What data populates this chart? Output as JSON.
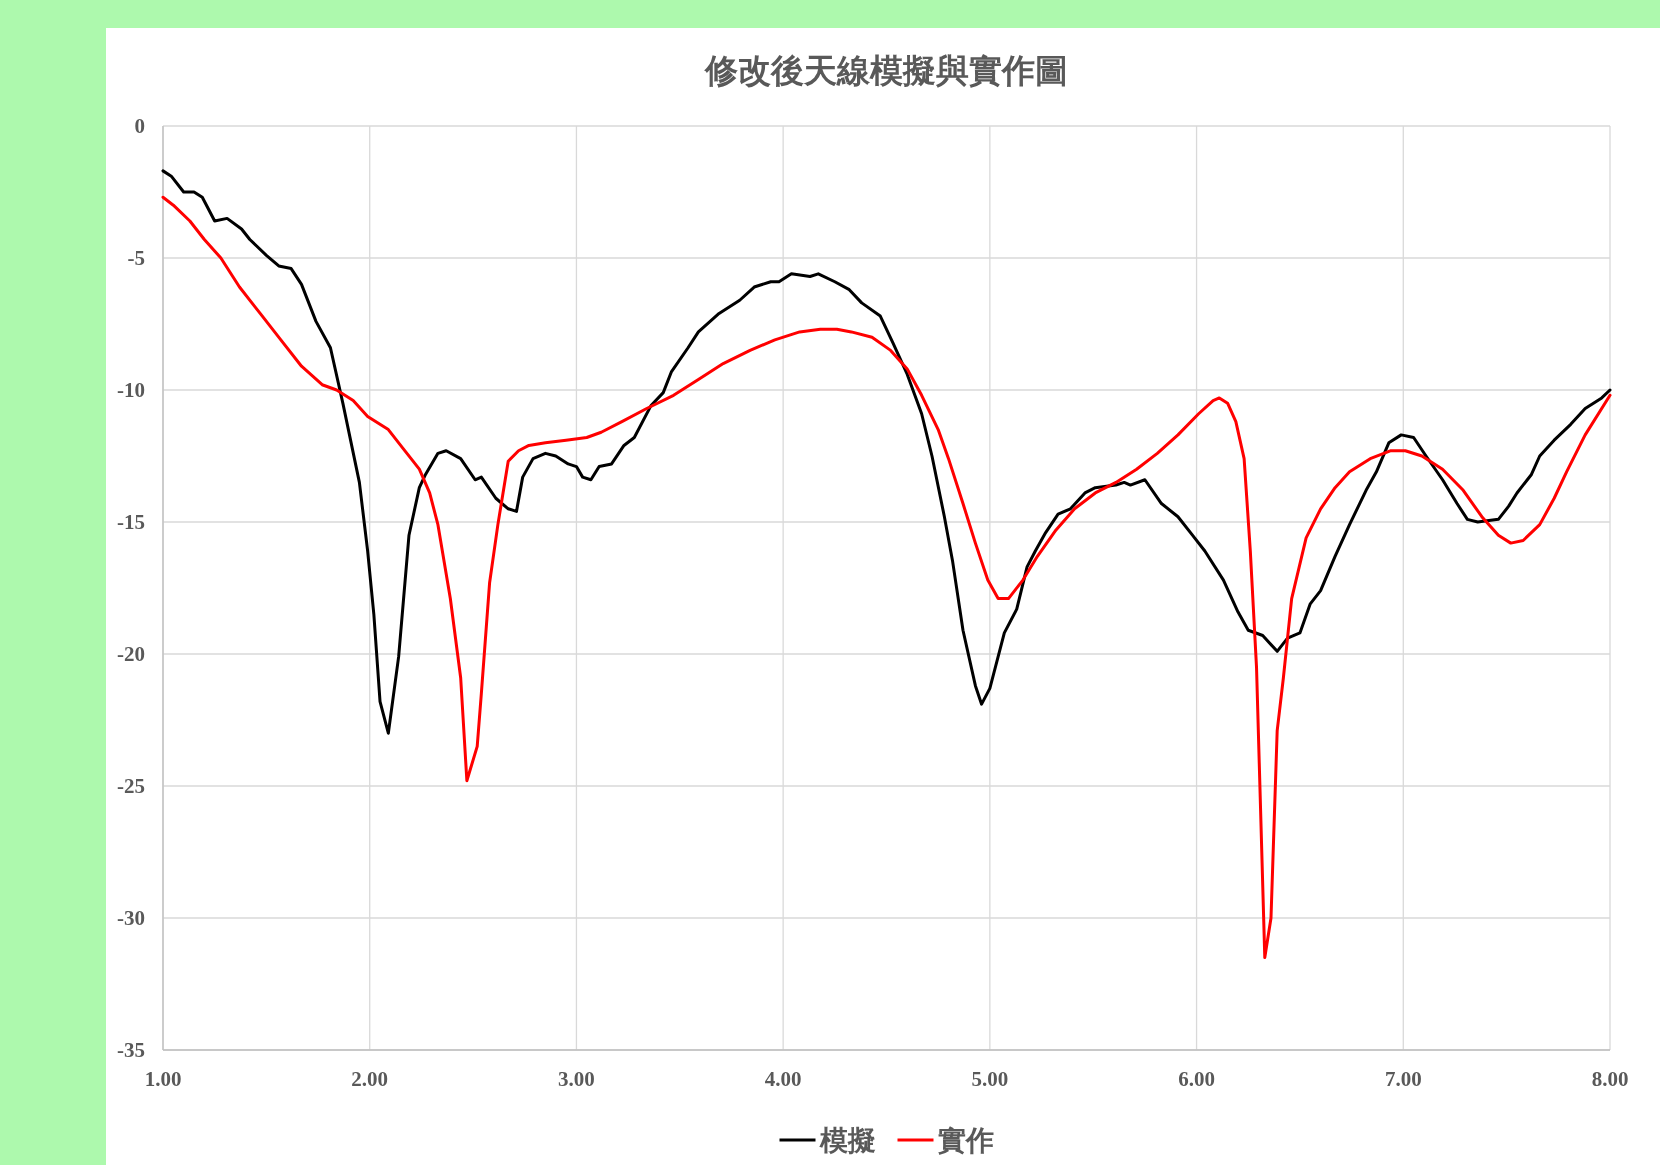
{
  "chart_data": {
    "type": "line",
    "title": "修改後天線模擬與實作圖",
    "xlim": [
      1,
      8
    ],
    "xticks": [
      {
        "value": 1,
        "label": "1.00"
      },
      {
        "value": 2,
        "label": "2.00"
      },
      {
        "value": 3,
        "label": "3.00"
      },
      {
        "value": 4,
        "label": "4.00"
      },
      {
        "value": 5,
        "label": "5.00"
      },
      {
        "value": 6,
        "label": "6.00"
      },
      {
        "value": 7,
        "label": "7.00"
      },
      {
        "value": 8,
        "label": "8.00"
      }
    ],
    "ylim": [
      -35,
      0
    ],
    "yticks": [
      0,
      -5,
      -10,
      -15,
      -20,
      -25,
      -30,
      -35
    ],
    "grid": true,
    "legend": "bottom",
    "marker": "none",
    "line_style": "solid",
    "series": [
      {
        "name": "模擬",
        "color": "#000000",
        "x": [
          1.0,
          1.04,
          1.1,
          1.15,
          1.19,
          1.25,
          1.31,
          1.38,
          1.42,
          1.5,
          1.56,
          1.62,
          1.67,
          1.74,
          1.81,
          1.87,
          1.95,
          1.99,
          2.02,
          2.05,
          2.09,
          2.14,
          2.19,
          2.24,
          2.27,
          2.33,
          2.37,
          2.44,
          2.51,
          2.54,
          2.61,
          2.67,
          2.71,
          2.74,
          2.79,
          2.85,
          2.9,
          2.96,
          3.0,
          3.03,
          3.07,
          3.11,
          3.17,
          3.23,
          3.28,
          3.36,
          3.42,
          3.46,
          3.54,
          3.59,
          3.69,
          3.79,
          3.86,
          3.94,
          3.98,
          4.04,
          4.13,
          4.17,
          4.25,
          4.32,
          4.38,
          4.47,
          4.53,
          4.6,
          4.67,
          4.72,
          4.78,
          4.82,
          4.87,
          4.93,
          4.96,
          5.0,
          5.07,
          5.13,
          5.18,
          5.22,
          5.27,
          5.33,
          5.39,
          5.46,
          5.51,
          5.61,
          5.65,
          5.68,
          5.75,
          5.83,
          5.91,
          5.98,
          6.04,
          6.13,
          6.2,
          6.25,
          6.32,
          6.39,
          6.44,
          6.5,
          6.55,
          6.6,
          6.67,
          6.74,
          6.82,
          6.87,
          6.93,
          6.99,
          7.05,
          7.11,
          7.19,
          7.26,
          7.31,
          7.36,
          7.46,
          7.51,
          7.55,
          7.62,
          7.66,
          7.73,
          7.81,
          7.88,
          7.96,
          8.0
        ],
        "values": [
          -1.7,
          -1.9,
          -2.5,
          -2.5,
          -2.7,
          -3.6,
          -3.5,
          -3.9,
          -4.3,
          -4.9,
          -5.3,
          -5.4,
          -6.0,
          -7.4,
          -8.4,
          -10.5,
          -13.5,
          -16.1,
          -18.5,
          -21.8,
          -23.0,
          -20.1,
          -15.5,
          -13.7,
          -13.2,
          -12.4,
          -12.3,
          -12.6,
          -13.4,
          -13.3,
          -14.1,
          -14.5,
          -14.6,
          -13.3,
          -12.6,
          -12.4,
          -12.5,
          -12.8,
          -12.9,
          -13.3,
          -13.4,
          -12.9,
          -12.8,
          -12.1,
          -11.8,
          -10.6,
          -10.1,
          -9.3,
          -8.4,
          -7.8,
          -7.1,
          -6.6,
          -6.1,
          -5.9,
          -5.9,
          -5.6,
          -5.7,
          -5.6,
          -5.9,
          -6.2,
          -6.7,
          -7.2,
          -8.2,
          -9.4,
          -10.9,
          -12.5,
          -14.8,
          -16.5,
          -19.1,
          -21.2,
          -21.9,
          -21.3,
          -19.2,
          -18.3,
          -16.7,
          -16.1,
          -15.4,
          -14.7,
          -14.5,
          -13.9,
          -13.7,
          -13.6,
          -13.5,
          -13.6,
          -13.4,
          -14.3,
          -14.8,
          -15.5,
          -16.1,
          -17.2,
          -18.4,
          -19.1,
          -19.3,
          -19.9,
          -19.4,
          -19.2,
          -18.1,
          -17.6,
          -16.3,
          -15.1,
          -13.8,
          -13.1,
          -12.0,
          -11.7,
          -11.8,
          -12.5,
          -13.4,
          -14.3,
          -14.9,
          -15.0,
          -14.9,
          -14.4,
          -13.9,
          -13.2,
          -12.5,
          -11.9,
          -11.3,
          -10.7,
          -10.3,
          -10.0
        ]
      },
      {
        "name": "實作",
        "color": "#ff0000",
        "x": [
          1.0,
          1.05,
          1.13,
          1.2,
          1.28,
          1.37,
          1.47,
          1.57,
          1.67,
          1.77,
          1.84,
          1.92,
          1.99,
          2.09,
          2.16,
          2.24,
          2.29,
          2.33,
          2.39,
          2.44,
          2.47,
          2.52,
          2.54,
          2.58,
          2.62,
          2.67,
          2.72,
          2.77,
          2.85,
          2.95,
          3.05,
          3.12,
          3.22,
          3.34,
          3.47,
          3.59,
          3.71,
          3.84,
          3.96,
          4.08,
          4.18,
          4.26,
          4.33,
          4.43,
          4.52,
          4.6,
          4.67,
          4.75,
          4.8,
          4.87,
          4.93,
          4.99,
          5.04,
          5.09,
          5.16,
          5.23,
          5.32,
          5.41,
          5.51,
          5.61,
          5.71,
          5.81,
          5.91,
          6.01,
          6.08,
          6.11,
          6.15,
          6.19,
          6.23,
          6.26,
          6.29,
          6.33,
          6.36,
          6.39,
          6.42,
          6.46,
          6.53,
          6.6,
          6.67,
          6.74,
          6.84,
          6.94,
          7.01,
          7.09,
          7.19,
          7.29,
          7.38,
          7.46,
          7.52,
          7.58,
          7.66,
          7.73,
          7.79,
          7.88,
          8.0
        ],
        "values": [
          -2.7,
          -3.0,
          -3.6,
          -4.3,
          -5.0,
          -6.1,
          -7.1,
          -8.1,
          -9.1,
          -9.8,
          -10.0,
          -10.4,
          -11.0,
          -11.5,
          -12.2,
          -13.0,
          -13.9,
          -15.1,
          -17.9,
          -20.9,
          -24.8,
          -23.5,
          -21.5,
          -17.3,
          -15.1,
          -12.7,
          -12.3,
          -12.1,
          -12.0,
          -11.9,
          -11.8,
          -11.6,
          -11.2,
          -10.7,
          -10.2,
          -9.6,
          -9.0,
          -8.5,
          -8.1,
          -7.8,
          -7.7,
          -7.7,
          -7.8,
          -8.0,
          -8.5,
          -9.2,
          -10.2,
          -11.5,
          -12.6,
          -14.3,
          -15.8,
          -17.2,
          -17.9,
          -17.9,
          -17.2,
          -16.3,
          -15.3,
          -14.5,
          -13.9,
          -13.5,
          -13.0,
          -12.4,
          -11.7,
          -10.9,
          -10.4,
          -10.3,
          -10.5,
          -11.2,
          -12.6,
          -16.1,
          -20.5,
          -31.5,
          -30.0,
          -22.9,
          -20.9,
          -17.9,
          -15.6,
          -14.5,
          -13.7,
          -13.1,
          -12.6,
          -12.3,
          -12.3,
          -12.5,
          -13.0,
          -13.8,
          -14.8,
          -15.5,
          -15.8,
          -15.7,
          -15.1,
          -14.1,
          -13.1,
          -11.7,
          -10.2
        ]
      }
    ]
  }
}
